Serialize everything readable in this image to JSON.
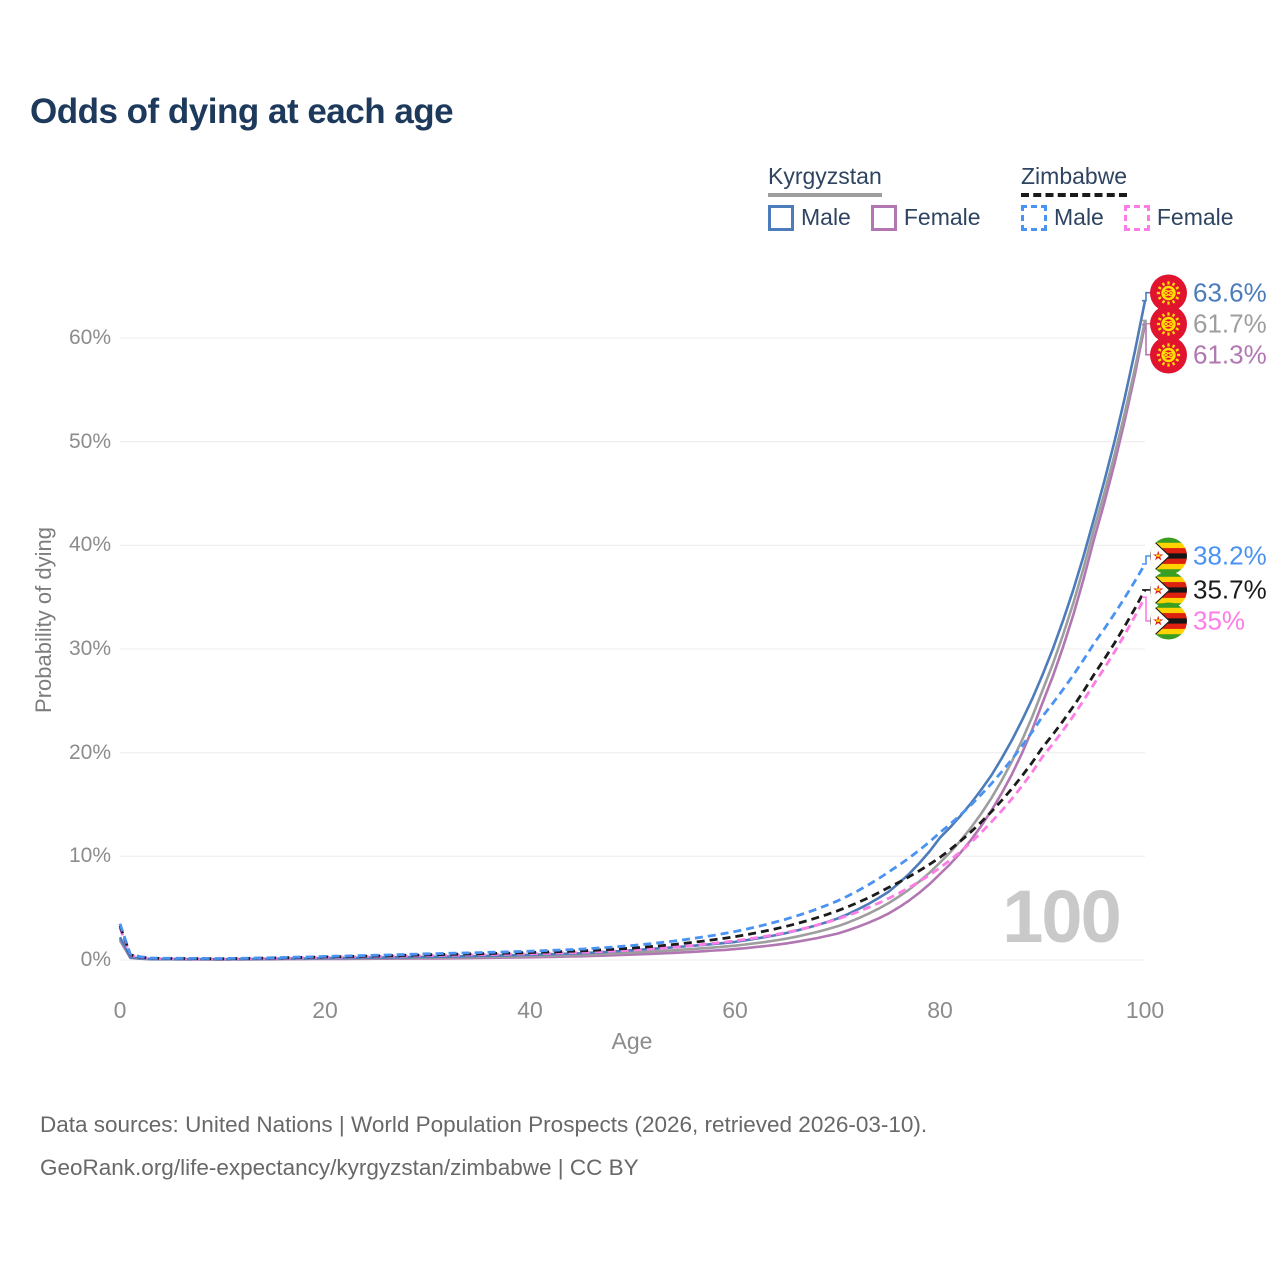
{
  "title": "Odds of dying at each age",
  "legend": {
    "groups": [
      {
        "name": "Kyrgyzstan",
        "line_style": "solid",
        "line_color": "#9e9e9e",
        "items": [
          {
            "label": "Male",
            "color": "#4d7cba",
            "dashed": false
          },
          {
            "label": "Female",
            "color": "#b277b2",
            "dashed": false
          }
        ]
      },
      {
        "name": "Zimbabwe",
        "line_style": "dashed",
        "line_color": "#1b1b1b",
        "items": [
          {
            "label": "Male",
            "color": "#4b93f2",
            "dashed": true
          },
          {
            "label": "Female",
            "color": "#fd7de6",
            "dashed": true
          }
        ]
      }
    ]
  },
  "chart_data": {
    "type": "line",
    "title": "Odds of dying at each age",
    "xlabel": "Age",
    "ylabel": "Probability of dying",
    "xlim": [
      0,
      100
    ],
    "ylim_pct": [
      0,
      66
    ],
    "grid": true,
    "watermark": "100",
    "x_ticks": [
      {
        "v": 0,
        "label": "0"
      },
      {
        "v": 20,
        "label": "20"
      },
      {
        "v": 40,
        "label": "40"
      },
      {
        "v": 60,
        "label": "60"
      },
      {
        "v": 80,
        "label": "80"
      },
      {
        "v": 100,
        "label": "100"
      }
    ],
    "y_ticks": [
      {
        "v": 0,
        "label": "0%"
      },
      {
        "v": 10,
        "label": "10%"
      },
      {
        "v": 20,
        "label": "20%"
      },
      {
        "v": 30,
        "label": "30%"
      },
      {
        "v": 40,
        "label": "40%"
      },
      {
        "v": 50,
        "label": "50%"
      },
      {
        "v": 60,
        "label": "60%"
      }
    ],
    "series": [
      {
        "id": "kyrgyzstan-female",
        "name": "Kyrgyzstan Female",
        "flag": "kyrgyzstan",
        "color": "#b277b2",
        "dashed": false,
        "end_value": 61.3,
        "end_label": "61.3%",
        "points": [
          [
            0,
            1.9
          ],
          [
            1,
            0.21
          ],
          [
            3,
            0.07
          ],
          [
            10,
            0.05
          ],
          [
            20,
            0.1
          ],
          [
            30,
            0.15
          ],
          [
            40,
            0.26
          ],
          [
            45,
            0.36
          ],
          [
            50,
            0.52
          ],
          [
            55,
            0.74
          ],
          [
            60,
            1.05
          ],
          [
            65,
            1.6
          ],
          [
            70,
            2.55
          ],
          [
            75,
            4.5
          ],
          [
            80,
            8.3
          ],
          [
            85,
            14.4
          ],
          [
            90,
            24.8
          ],
          [
            95,
            40.5
          ],
          [
            100,
            61.3
          ]
        ]
      },
      {
        "id": "kyrgyzstan-total",
        "name": "Kyrgyzstan Total",
        "flag": "kyrgyzstan",
        "color": "#9e9e9e",
        "dashed": false,
        "end_value": 61.7,
        "end_label": "61.7%",
        "points": [
          [
            0,
            2.05
          ],
          [
            1,
            0.23
          ],
          [
            3,
            0.08
          ],
          [
            10,
            0.06
          ],
          [
            20,
            0.14
          ],
          [
            30,
            0.22
          ],
          [
            40,
            0.38
          ],
          [
            45,
            0.5
          ],
          [
            50,
            0.72
          ],
          [
            55,
            1.0
          ],
          [
            60,
            1.38
          ],
          [
            65,
            2.05
          ],
          [
            70,
            3.25
          ],
          [
            75,
            5.5
          ],
          [
            80,
            9.4
          ],
          [
            85,
            15.6
          ],
          [
            90,
            26.0
          ],
          [
            95,
            41.5
          ],
          [
            100,
            61.7
          ]
        ]
      },
      {
        "id": "kyrgyzstan-male",
        "name": "Kyrgyzstan Male",
        "flag": "kyrgyzstan",
        "color": "#4d7cba",
        "dashed": false,
        "end_value": 63.6,
        "end_label": "63.6%",
        "points": [
          [
            0,
            2.2
          ],
          [
            1,
            0.25
          ],
          [
            3,
            0.09
          ],
          [
            10,
            0.07
          ],
          [
            20,
            0.18
          ],
          [
            30,
            0.3
          ],
          [
            40,
            0.5
          ],
          [
            45,
            0.65
          ],
          [
            50,
            0.95
          ],
          [
            55,
            1.3
          ],
          [
            60,
            1.75
          ],
          [
            65,
            2.6
          ],
          [
            70,
            4.0
          ],
          [
            75,
            6.6
          ],
          [
            80,
            11.8
          ],
          [
            85,
            17.8
          ],
          [
            90,
            27.5
          ],
          [
            95,
            42.5
          ],
          [
            100,
            63.6
          ]
        ]
      },
      {
        "id": "zimbabwe-female",
        "name": "Zimbabwe Female",
        "flag": "zimbabwe",
        "color": "#fd7de6",
        "dashed": true,
        "end_value": 35.0,
        "end_label": "35%",
        "points": [
          [
            0,
            3.1
          ],
          [
            1,
            0.46
          ],
          [
            3,
            0.14
          ],
          [
            10,
            0.1
          ],
          [
            20,
            0.26
          ],
          [
            30,
            0.43
          ],
          [
            40,
            0.6
          ],
          [
            45,
            0.73
          ],
          [
            50,
            0.95
          ],
          [
            55,
            1.32
          ],
          [
            60,
            1.85
          ],
          [
            65,
            2.65
          ],
          [
            70,
            3.95
          ],
          [
            75,
            5.95
          ],
          [
            80,
            8.9
          ],
          [
            85,
            13.3
          ],
          [
            90,
            19.6
          ],
          [
            95,
            26.6
          ],
          [
            100,
            35.0
          ]
        ]
      },
      {
        "id": "zimbabwe-total",
        "name": "Zimbabwe Total",
        "flag": "zimbabwe",
        "color": "#1b1b1b",
        "dashed": true,
        "end_value": 35.7,
        "end_label": "35.7%",
        "points": [
          [
            0,
            3.3
          ],
          [
            1,
            0.5
          ],
          [
            3,
            0.16
          ],
          [
            10,
            0.12
          ],
          [
            20,
            0.3
          ],
          [
            30,
            0.5
          ],
          [
            40,
            0.72
          ],
          [
            45,
            0.88
          ],
          [
            50,
            1.15
          ],
          [
            55,
            1.6
          ],
          [
            60,
            2.25
          ],
          [
            65,
            3.25
          ],
          [
            70,
            4.75
          ],
          [
            75,
            7.0
          ],
          [
            80,
            9.9
          ],
          [
            85,
            14.3
          ],
          [
            90,
            20.5
          ],
          [
            95,
            27.5
          ],
          [
            100,
            35.7
          ]
        ]
      },
      {
        "id": "zimbabwe-male",
        "name": "Zimbabwe Male",
        "flag": "zimbabwe",
        "color": "#4b93f2",
        "dashed": true,
        "end_value": 38.2,
        "end_label": "38.2%",
        "points": [
          [
            0,
            3.5
          ],
          [
            1,
            0.55
          ],
          [
            3,
            0.18
          ],
          [
            10,
            0.14
          ],
          [
            20,
            0.35
          ],
          [
            30,
            0.6
          ],
          [
            40,
            0.85
          ],
          [
            45,
            1.05
          ],
          [
            50,
            1.4
          ],
          [
            55,
            1.95
          ],
          [
            60,
            2.75
          ],
          [
            65,
            3.95
          ],
          [
            70,
            5.7
          ],
          [
            75,
            8.5
          ],
          [
            80,
            12.3
          ],
          [
            85,
            17.0
          ],
          [
            90,
            23.5
          ],
          [
            95,
            30.5
          ],
          [
            100,
            38.2
          ]
        ]
      }
    ]
  },
  "footer": {
    "line1": "Data sources: United Nations | World Population Prospects (2026, retrieved 2026-03-10).",
    "line2": "GeoRank.org/life-expectancy/kyrgyzstan/zimbabwe | CC BY"
  }
}
